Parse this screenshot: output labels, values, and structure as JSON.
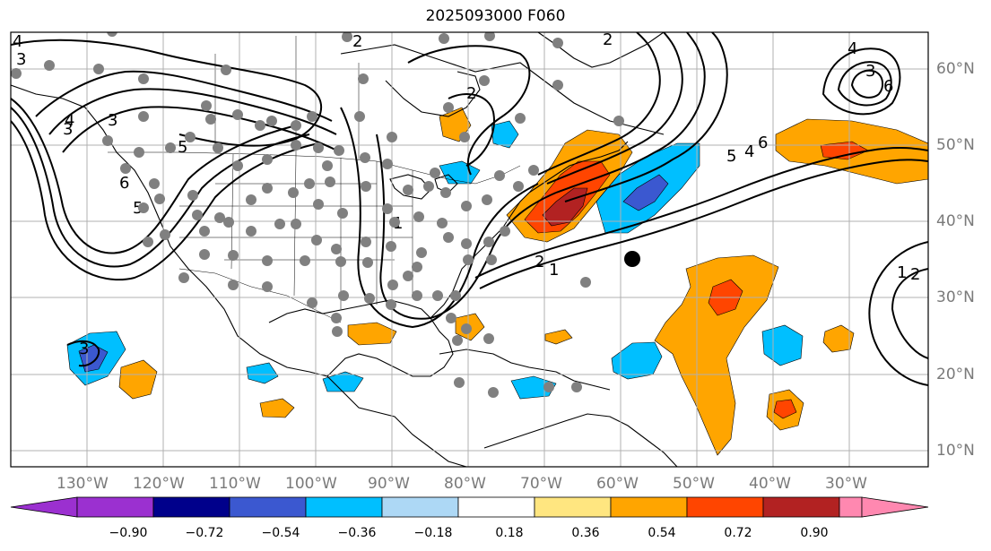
{
  "title": "2025093000 F060",
  "longitude_labels": [
    "130°W",
    "120°W",
    "110°W",
    "100°W",
    "90°W",
    "80°W",
    "70°W",
    "60°W",
    "50°W",
    "40°W",
    "30°W"
  ],
  "latitude_labels": [
    "60°N",
    "50°N",
    "40°N",
    "30°N",
    "20°N",
    "10°N"
  ],
  "colorbar": {
    "labels": [
      "−0.90",
      "−0.72",
      "−0.54",
      "−0.36",
      "−0.18",
      "0.18",
      "0.36",
      "0.54",
      "0.72",
      "0.90"
    ],
    "colors": [
      "#9b30d0",
      "#00008b",
      "#3b58d0",
      "#00bfff",
      "#add8f5",
      "#ffffff",
      "#ffe680",
      "#ffa500",
      "#ff4500",
      "#b22222",
      "#ff88b0"
    ]
  },
  "contour_labels": [
    "4",
    "3",
    "5",
    "4",
    "6",
    "5",
    "3",
    "2",
    "1",
    "2",
    "5",
    "6",
    "4",
    "3",
    "6",
    "2",
    "1",
    "3",
    "2",
    "4",
    "3",
    "1",
    "2"
  ],
  "colors": {
    "contour": "#000000",
    "station_dot": "#808080",
    "grid": "#b0b0b0",
    "marker": "#000000"
  }
}
